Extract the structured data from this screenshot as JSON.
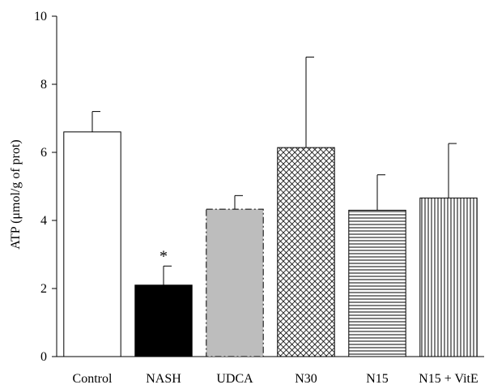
{
  "chart_data": {
    "type": "bar",
    "title": "",
    "xlabel": "",
    "ylabel": "ATP (μmol/g of prot)",
    "ylim": [
      0,
      10
    ],
    "yticks": [
      0,
      2,
      4,
      6,
      8,
      10
    ],
    "grid": false,
    "legend": "none",
    "categories": [
      "Control",
      "NASH",
      "UDCA",
      "N30",
      "N15",
      "N15 + VitE"
    ],
    "values": [
      6.6,
      2.1,
      4.33,
      6.14,
      4.3,
      4.66
    ],
    "error_upper": [
      0.6,
      0.56,
      0.4,
      2.66,
      1.04,
      1.6
    ],
    "annotations": [
      {
        "category": "NASH",
        "text": "*"
      }
    ],
    "bar_styles": [
      {
        "fill": "white",
        "stroke": "solid"
      },
      {
        "fill": "black",
        "stroke": "solid"
      },
      {
        "fill": "gray",
        "stroke": "dash-dot"
      },
      {
        "fill": "crosshatch",
        "stroke": "solid"
      },
      {
        "fill": "horizontal-lines",
        "stroke": "solid"
      },
      {
        "fill": "vertical-lines",
        "stroke": "solid"
      }
    ],
    "colors": {
      "gray_fill": "#bdbdbd",
      "black_fill": "#000000",
      "stroke": "#000000"
    }
  }
}
